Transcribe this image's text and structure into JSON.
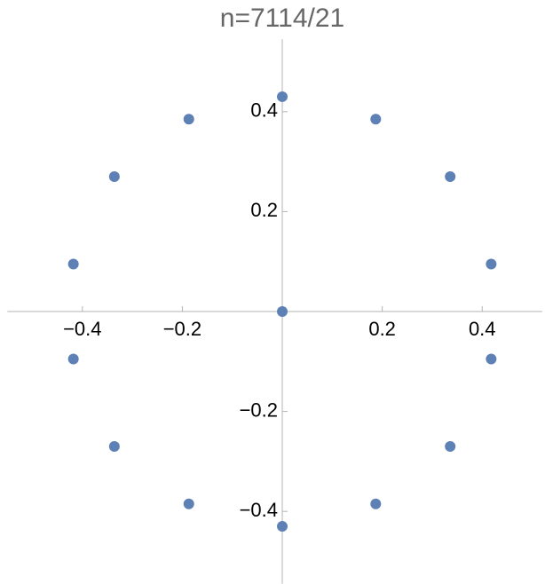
{
  "chart_data": {
    "type": "scatter",
    "title": "n=7114/21",
    "series": [
      {
        "color": "#5e81b5",
        "x": [
          0,
          -0.187,
          0.187,
          -0.336,
          0.336,
          -0.418,
          0.418,
          0,
          -0.418,
          0.418,
          -0.336,
          0.336,
          -0.187,
          0.187,
          0
        ],
        "y": [
          0.43,
          0.385,
          0.385,
          0.27,
          0.27,
          0.095,
          0.095,
          0,
          -0.095,
          -0.095,
          -0.27,
          -0.27,
          -0.385,
          -0.385,
          -0.43
        ]
      }
    ],
    "xlim": [
      -0.55,
      0.52
    ],
    "ylim": [
      -0.545,
      0.545
    ],
    "xticks": [
      {
        "value": -0.4,
        "label": "−0.4"
      },
      {
        "value": -0.2,
        "label": "−0.2"
      },
      0.2,
      0.4
    ],
    "yticks": [
      {
        "value": -0.4,
        "label": "−0.4"
      },
      {
        "value": -0.2,
        "label": "−0.2"
      },
      0.2,
      0.4
    ]
  }
}
